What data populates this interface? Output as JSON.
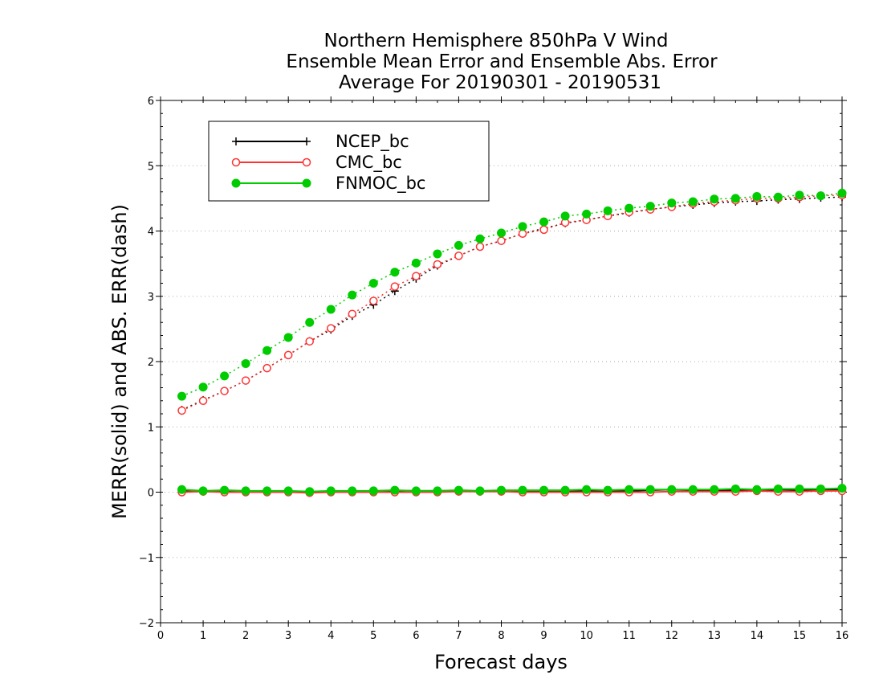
{
  "chart_data": {
    "type": "line",
    "title_lines": [
      "Northern Hemisphere 850hPa V Wind",
      "Ensemble Mean Error and Ensemble Abs. Error",
      "Average For 20190301 - 20190531"
    ],
    "xlabel": "Forecast days",
    "ylabel": "MERR(solid) and ABS. ERR(dash)",
    "xlim": [
      0,
      16
    ],
    "ylim": [
      -2,
      6
    ],
    "xticks": [
      "0",
      "1",
      "2",
      "3",
      "4",
      "5",
      "6",
      "7",
      "8",
      "9",
      "10",
      "11",
      "12",
      "13",
      "14",
      "15",
      "16"
    ],
    "yticks": [
      "−2",
      "−1",
      "0",
      "1",
      "2",
      "3",
      "4",
      "5",
      "6"
    ],
    "grid": "horizontal dotted",
    "legend_position": "top-left",
    "x": [
      0.5,
      1,
      1.5,
      2,
      2.5,
      3,
      3.5,
      4,
      4.5,
      5,
      5.5,
      6,
      6.5,
      7,
      7.5,
      8,
      8.5,
      9,
      9.5,
      10,
      10.5,
      11,
      11.5,
      12,
      12.5,
      13,
      13.5,
      14,
      14.5,
      15,
      15.5,
      16
    ],
    "series": [
      {
        "name": "NCEP_bc",
        "color": "#000000",
        "marker": "plus",
        "merr": [
          0.02,
          0.01,
          0.01,
          0.01,
          0.01,
          0.01,
          -0.01,
          0.01,
          0.01,
          0.01,
          0.02,
          0.02,
          0.02,
          0.02,
          0.01,
          0.02,
          0.02,
          0.02,
          0.02,
          0.02,
          0.02,
          0.02,
          0.03,
          0.04,
          0.03,
          0.03,
          0.03,
          0.03,
          0.04,
          0.03,
          0.04,
          0.04
        ],
        "abs_err": [
          1.26,
          1.41,
          1.55,
          1.71,
          1.9,
          2.1,
          2.31,
          2.49,
          2.7,
          2.87,
          3.08,
          3.27,
          3.47,
          3.62,
          3.76,
          3.85,
          3.96,
          4.04,
          4.12,
          4.17,
          4.23,
          4.28,
          4.33,
          4.37,
          4.4,
          4.43,
          4.45,
          4.46,
          4.48,
          4.49,
          4.51,
          4.52
        ]
      },
      {
        "name": "CMC_bc",
        "color": "#ff3333",
        "marker": "open-circle",
        "merr": [
          0.0,
          0.01,
          0.0,
          0.0,
          0.0,
          0.0,
          -0.01,
          0.0,
          0.0,
          0.0,
          0.0,
          0.0,
          0.0,
          0.01,
          0.01,
          0.01,
          0.0,
          0.0,
          0.0,
          0.0,
          0.0,
          0.0,
          0.0,
          0.01,
          0.01,
          0.01,
          0.01,
          0.02,
          0.01,
          0.01,
          0.02,
          0.02
        ],
        "abs_err": [
          1.25,
          1.4,
          1.55,
          1.71,
          1.9,
          2.1,
          2.31,
          2.51,
          2.73,
          2.93,
          3.15,
          3.31,
          3.49,
          3.62,
          3.76,
          3.85,
          3.96,
          4.02,
          4.13,
          4.17,
          4.23,
          4.29,
          4.33,
          4.37,
          4.42,
          4.45,
          4.47,
          4.5,
          4.5,
          4.52,
          4.54,
          4.55
        ]
      },
      {
        "name": "FNMOC_bc",
        "color": "#00cc00",
        "marker": "filled-circle",
        "merr": [
          0.04,
          0.02,
          0.03,
          0.02,
          0.02,
          0.02,
          0.01,
          0.02,
          0.02,
          0.02,
          0.03,
          0.02,
          0.02,
          0.03,
          0.02,
          0.03,
          0.03,
          0.03,
          0.03,
          0.04,
          0.03,
          0.04,
          0.04,
          0.04,
          0.04,
          0.04,
          0.05,
          0.04,
          0.05,
          0.05,
          0.05,
          0.06
        ],
        "abs_err": [
          1.47,
          1.61,
          1.78,
          1.97,
          2.17,
          2.37,
          2.6,
          2.8,
          3.02,
          3.2,
          3.37,
          3.51,
          3.65,
          3.78,
          3.88,
          3.97,
          4.07,
          4.14,
          4.23,
          4.26,
          4.31,
          4.35,
          4.38,
          4.43,
          4.45,
          4.49,
          4.5,
          4.53,
          4.52,
          4.55,
          4.54,
          4.58
        ]
      }
    ]
  }
}
